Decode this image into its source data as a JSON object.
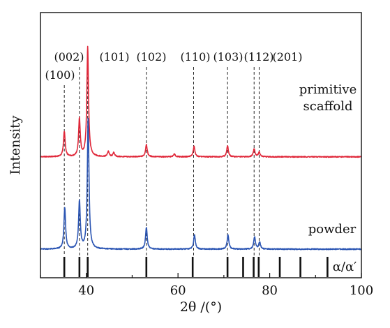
{
  "chart_data": {
    "type": "line",
    "xlabel": "2θ /(°)",
    "ylabel": "Intensity",
    "xlim": [
      30,
      100
    ],
    "x_ticks": [
      40,
      60,
      80,
      100
    ],
    "grid": false,
    "series": [
      {
        "name": "primitive scaffold",
        "color": "#e0283a",
        "baseline": 1.35,
        "peaks": [
          {
            "x": 35.2,
            "h": 0.37
          },
          {
            "x": 38.5,
            "h": 0.55
          },
          {
            "x": 40.3,
            "h": 1.6
          },
          {
            "x": 44.8,
            "h": 0.08
          },
          {
            "x": 46.0,
            "h": 0.06
          },
          {
            "x": 53.1,
            "h": 0.18
          },
          {
            "x": 59.2,
            "h": 0.04
          },
          {
            "x": 63.5,
            "h": 0.15
          },
          {
            "x": 70.8,
            "h": 0.16
          },
          {
            "x": 76.6,
            "h": 0.12
          },
          {
            "x": 77.7,
            "h": 0.07
          }
        ]
      },
      {
        "name": "powder",
        "color": "#2b55b3",
        "baseline": 0,
        "peaks": [
          {
            "x": 35.3,
            "h": 0.6
          },
          {
            "x": 38.5,
            "h": 0.7
          },
          {
            "x": 40.4,
            "h": 1.9
          },
          {
            "x": 53.1,
            "h": 0.32
          },
          {
            "x": 63.6,
            "h": 0.21
          },
          {
            "x": 70.9,
            "h": 0.21
          },
          {
            "x": 76.7,
            "h": 0.18
          },
          {
            "x": 77.8,
            "h": 0.1
          }
        ]
      }
    ],
    "reference_lines": {
      "label": "α/α′",
      "positions": [
        35.2,
        38.5,
        40.3,
        53.1,
        63.2,
        70.8,
        74.2,
        76.5,
        77.6,
        82.2,
        86.7,
        92.6
      ]
    },
    "peak_labels": [
      {
        "text": "(100)",
        "x": 35.2,
        "level": "low"
      },
      {
        "text": "(002)",
        "x": 38.5,
        "level": "high"
      },
      {
        "text": "(101)",
        "x": 40.3,
        "level": "high"
      },
      {
        "text": "(102)",
        "x": 53.1,
        "level": "high"
      },
      {
        "text": "(110)",
        "x": 63.4,
        "level": "high"
      },
      {
        "text": "(103)",
        "x": 70.8,
        "level": "high"
      },
      {
        "text": "(112)",
        "x": 76.6,
        "level": "high"
      },
      {
        "text": "(201)",
        "x": 77.7,
        "level": "high"
      }
    ],
    "annotations": {
      "series_label_primitive_line1": "primitive",
      "series_label_primitive_line2": "scaffold",
      "series_label_powder": "powder"
    }
  }
}
